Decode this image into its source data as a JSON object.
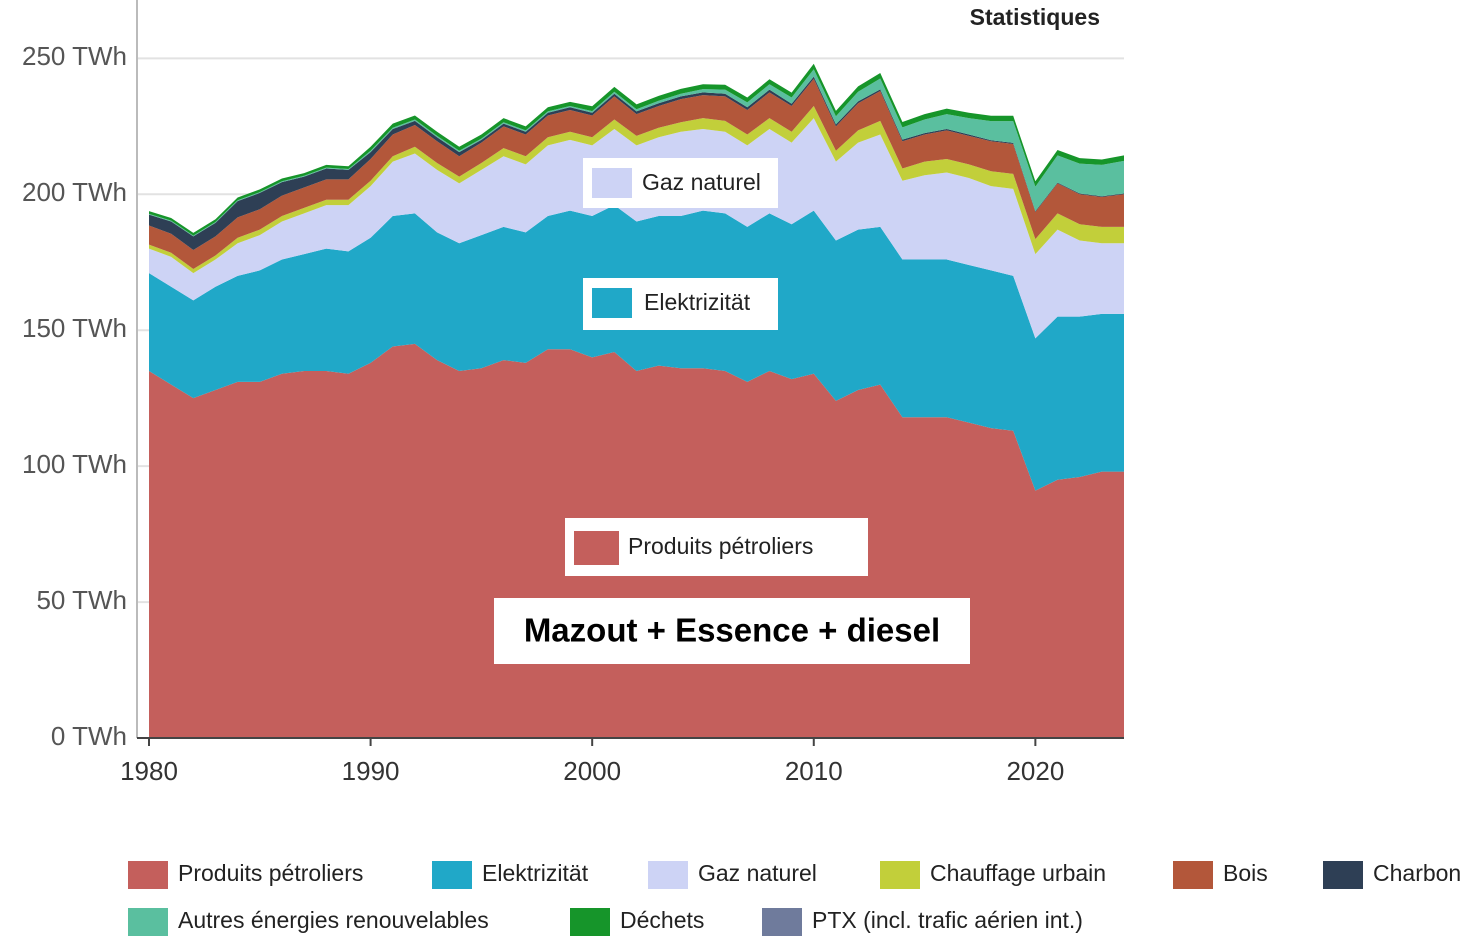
{
  "chart_data": {
    "type": "stacked_area",
    "title": "Statistiques",
    "annotations": [
      "Mazout + Essence + diesel"
    ],
    "x": [
      1980,
      1981,
      1982,
      1983,
      1984,
      1985,
      1986,
      1987,
      1988,
      1989,
      1990,
      1991,
      1992,
      1993,
      1994,
      1995,
      1996,
      1997,
      1998,
      1999,
      2000,
      2001,
      2002,
      2003,
      2004,
      2005,
      2006,
      2007,
      2008,
      2009,
      2010,
      2011,
      2012,
      2013,
      2014,
      2015,
      2016,
      2017,
      2018,
      2019,
      2020,
      2021,
      2022,
      2023,
      2024
    ],
    "xlim": [
      1980,
      2024
    ],
    "xticks": [
      1980,
      1990,
      2000,
      2010,
      2020
    ],
    "ylim": [
      0,
      270
    ],
    "yticks": [
      {
        "value": 0,
        "label": "0 TWh"
      },
      {
        "value": 50,
        "label": "50 TWh"
      },
      {
        "value": 100,
        "label": "100 TWh"
      },
      {
        "value": 150,
        "label": "150 TWh"
      },
      {
        "value": 200,
        "label": "200 TWh"
      },
      {
        "value": 250,
        "label": "250 TWh"
      }
    ],
    "grid": true,
    "legend": "bottom",
    "series": [
      {
        "name": "Produits pétroliers",
        "color": "#c45f5c",
        "values": [
          135,
          130,
          125,
          128,
          131,
          131,
          134,
          135,
          135,
          134,
          138,
          144,
          145,
          139,
          135,
          136,
          139,
          138,
          143,
          143,
          140,
          142,
          135,
          137,
          136,
          136,
          135,
          131,
          135,
          132,
          134,
          124,
          128,
          130,
          118,
          118,
          118,
          116,
          114,
          113,
          91,
          95,
          96,
          98,
          98
        ]
      },
      {
        "name": "Elektrizität",
        "color": "#20a8c8",
        "values": [
          36,
          36,
          36,
          38,
          39,
          41,
          42,
          43,
          45,
          45,
          46,
          48,
          48,
          47,
          47,
          49,
          49,
          48,
          49,
          51,
          52,
          54,
          55,
          55,
          56,
          58,
          58,
          57,
          58,
          57,
          60,
          59,
          59,
          58,
          58,
          58,
          58,
          58,
          58,
          57,
          56,
          60,
          59,
          58,
          58
        ]
      },
      {
        "name": "Gaz naturel",
        "color": "#cdd3f5",
        "values": [
          9,
          11,
          10,
          10,
          12,
          13,
          14,
          15,
          16,
          17,
          19,
          20,
          22,
          23,
          22,
          24,
          26,
          25,
          26,
          26,
          26,
          28,
          28,
          29,
          31,
          30,
          30,
          30,
          31,
          30,
          34,
          29,
          32,
          34,
          29,
          31,
          32,
          32,
          31,
          32,
          31,
          32,
          28,
          26,
          26
        ]
      },
      {
        "name": "Chauffage urbain",
        "color": "#c2cf3a",
        "values": [
          1.5,
          1.5,
          1.5,
          1.5,
          2,
          2,
          2,
          2,
          2,
          2,
          2,
          2,
          2.5,
          2.5,
          2.5,
          2.5,
          3,
          3,
          3,
          3,
          3,
          3.5,
          3.5,
          3.5,
          3.5,
          4,
          4,
          4,
          4,
          4,
          4.5,
          4,
          4.5,
          5,
          4.5,
          5,
          5,
          5,
          5.5,
          5.5,
          5.5,
          6,
          6,
          6,
          6
        ]
      },
      {
        "name": "Bois",
        "color": "#b3573a",
        "values": [
          7,
          7,
          7,
          7,
          7.5,
          7.5,
          7.5,
          7.5,
          7.5,
          7.5,
          8,
          8,
          8,
          8,
          7.5,
          7.5,
          8,
          8,
          8,
          8,
          8,
          8.5,
          8,
          8,
          8.5,
          8.5,
          9,
          9,
          9.5,
          9.5,
          10,
          9,
          10,
          11,
          10,
          10,
          10.5,
          10.5,
          11,
          11,
          10,
          11,
          11,
          11,
          12
        ]
      },
      {
        "name": "Charbon",
        "color": "#2e3f55",
        "values": [
          4,
          4.5,
          5,
          5,
          6,
          6,
          5,
          4,
          4,
          3.5,
          2.5,
          2,
          1.5,
          1.5,
          1.5,
          1,
          1,
          1,
          1,
          1,
          1,
          1,
          1,
          1,
          1,
          1,
          1,
          1,
          1,
          0.8,
          0.8,
          0.7,
          0.7,
          0.6,
          0.6,
          0.5,
          0.5,
          0.5,
          0.4,
          0.4,
          0.3,
          0.3,
          0.3,
          0.3,
          0.3
        ]
      },
      {
        "name": "Autres énergies renouvelables",
        "color": "#5abf9f",
        "values": [
          0.3,
          0.3,
          0.3,
          0.3,
          0.3,
          0.3,
          0.3,
          0.3,
          0.3,
          0.3,
          0.5,
          0.5,
          0.5,
          0.5,
          0.5,
          0.5,
          0.5,
          0.5,
          0.5,
          0.5,
          0.6,
          0.7,
          0.8,
          0.9,
          1,
          1.2,
          1.5,
          1.8,
          2,
          2.3,
          2.7,
          3,
          3.5,
          4,
          4.5,
          5,
          5.5,
          6,
          7,
          8,
          9,
          10,
          11,
          11.5,
          12
        ]
      },
      {
        "name": "Déchets",
        "color": "#16952a",
        "values": [
          1,
          1,
          1,
          1,
          1,
          1,
          1,
          1,
          1,
          1,
          1.5,
          1.5,
          1.5,
          1.5,
          1.5,
          1.5,
          1.5,
          1.5,
          1.5,
          1.5,
          1.8,
          1.8,
          1.8,
          1.8,
          1.8,
          1.8,
          1.8,
          1.8,
          1.8,
          1.8,
          2,
          2,
          2,
          2,
          2,
          2,
          2,
          2,
          2,
          2,
          2,
          2,
          2,
          2,
          2
        ]
      },
      {
        "name": "PTX (incl. trafic aérien int.)",
        "color": "#6f7b9c",
        "values": [
          0,
          0,
          0,
          0,
          0,
          0,
          0,
          0,
          0,
          0,
          0,
          0,
          0,
          0,
          0,
          0,
          0,
          0,
          0,
          0,
          0,
          0,
          0,
          0,
          0,
          0,
          0,
          0,
          0,
          0,
          0,
          0,
          0,
          0,
          0,
          0,
          0,
          0,
          0,
          0,
          0,
          0,
          0,
          0,
          0
        ]
      }
    ]
  }
}
